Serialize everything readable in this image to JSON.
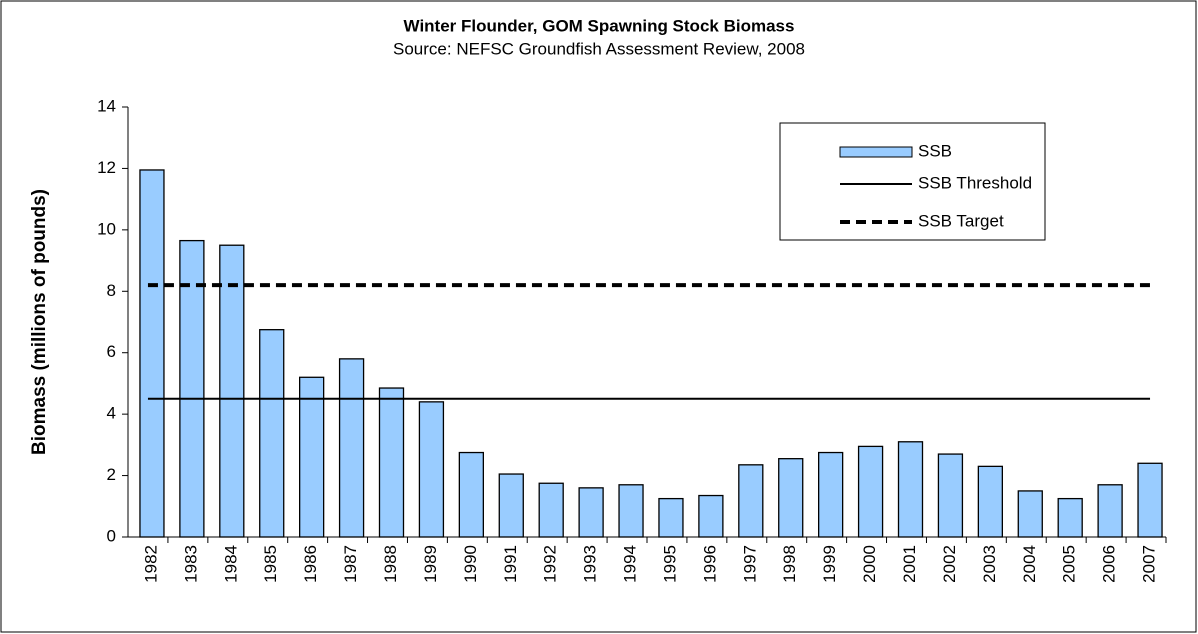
{
  "chart_data": {
    "type": "bar",
    "title": "Winter Flounder, GOM Spawning Stock Biomass",
    "subtitle": "Source: NEFSC Groundfish Assessment Review, 2008",
    "y_label": "Biomass (millions of pounds)",
    "categories": [
      "1982",
      "1983",
      "1984",
      "1985",
      "1986",
      "1987",
      "1988",
      "1989",
      "1990",
      "1991",
      "1992",
      "1993",
      "1994",
      "1995",
      "1996",
      "1997",
      "1998",
      "1999",
      "2000",
      "2001",
      "2002",
      "2003",
      "2004",
      "2005",
      "2006",
      "2007"
    ],
    "series": [
      {
        "name": "SSB",
        "color": "#99ccff",
        "values": [
          11.95,
          9.65,
          9.5,
          6.75,
          5.2,
          5.8,
          4.85,
          4.4,
          2.75,
          2.05,
          1.75,
          1.6,
          1.7,
          1.25,
          1.35,
          2.35,
          2.55,
          2.75,
          2.95,
          3.1,
          2.7,
          2.3,
          1.5,
          1.25,
          1.7,
          2.4
        ]
      }
    ],
    "reference_lines": [
      {
        "name": "SSB Threshold",
        "value": 4.5,
        "color": "#000000",
        "dashed": false
      },
      {
        "name": "SSB Target",
        "value": 8.2,
        "color": "#000000",
        "dashed": true
      }
    ],
    "ylim": [
      0,
      14
    ],
    "yticks": [
      0,
      2,
      4,
      6,
      8,
      10,
      12,
      14
    ],
    "grid": false
  }
}
